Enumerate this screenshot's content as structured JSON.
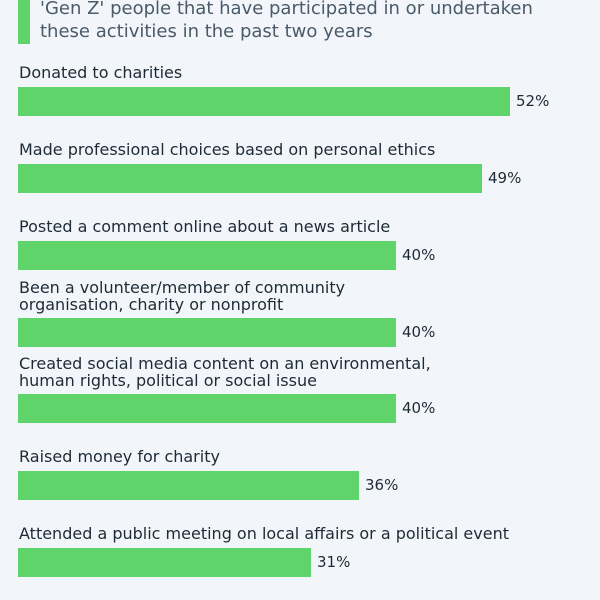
{
  "legend": {
    "text": "'Gen Z' people that have participated in or undertaken these activities in the past two years"
  },
  "colors": {
    "bar": "#5fd46b",
    "background": "#f2f6fa"
  },
  "chart_data": {
    "type": "bar",
    "orientation": "horizontal",
    "categories": [
      "Donated to charities",
      "Made professional choices based on personal ethics",
      "Posted a comment online about a news article",
      "Been a volunteer/member of community organisation, charity or nonprofit",
      "Created social media content on an environmental, human rights, political or social issue",
      "Raised money for charity",
      "Attended a public meeting on local affairs or a political event"
    ],
    "values": [
      52,
      49,
      40,
      40,
      40,
      36,
      31
    ],
    "value_labels": [
      "52%",
      "49%",
      "40%",
      "40%",
      "40%",
      "36%",
      "31%"
    ],
    "series": [
      {
        "name": "'Gen Z' people that have participated in or undertaken these activities in the past two years",
        "values": [
          52,
          49,
          40,
          40,
          40,
          36,
          31
        ]
      }
    ],
    "unit": "%",
    "xlim": [
      0,
      52
    ],
    "grid": false,
    "legend_position": "top-left"
  }
}
